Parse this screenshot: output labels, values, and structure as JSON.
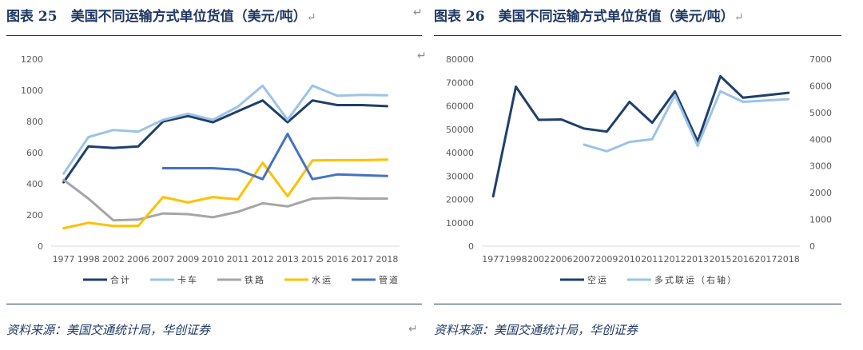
{
  "left_panel": {
    "title": "图表 25　美国不同运输方式单位货值（美元/吨）",
    "return_mark": "↵",
    "source": "资料来源：美国交通统计局，华创证券",
    "chart_data": {
      "type": "line",
      "categories": [
        "1977",
        "1998",
        "2002",
        "2006",
        "2007",
        "2009",
        "2010",
        "2011",
        "2012",
        "2013",
        "2015",
        "2016",
        "2017",
        "2018"
      ],
      "ylim": [
        0,
        1200
      ],
      "yticks": [
        0,
        200,
        400,
        600,
        800,
        1000,
        1200
      ],
      "grid": false,
      "legend_position": "bottom",
      "series": [
        {
          "name": "合计",
          "color": "#1f3f6b",
          "values": [
            410,
            640,
            630,
            640,
            800,
            835,
            795,
            865,
            935,
            795,
            935,
            905,
            905,
            898
          ]
        },
        {
          "name": "卡车",
          "color": "#9dc3e6",
          "values": [
            465,
            700,
            745,
            735,
            810,
            850,
            810,
            895,
            1030,
            810,
            1030,
            965,
            970,
            968
          ]
        },
        {
          "name": "铁路",
          "color": "#a6a6a6",
          "values": [
            425,
            305,
            165,
            170,
            210,
            205,
            185,
            220,
            275,
            255,
            305,
            310,
            305,
            305
          ]
        },
        {
          "name": "水运",
          "color": "#ffc000",
          "values": [
            115,
            150,
            130,
            130,
            315,
            280,
            315,
            300,
            535,
            320,
            550,
            552,
            552,
            555
          ]
        },
        {
          "name": "管道",
          "color": "#4472c4",
          "values": [
            null,
            null,
            null,
            null,
            500,
            500,
            500,
            490,
            430,
            720,
            430,
            460,
            455,
            450
          ]
        }
      ]
    }
  },
  "middle_mark": "↵",
  "right_panel": {
    "title": "图表 26　美国不同运输方式单位货值（美元/吨）",
    "return_mark": "↵",
    "source": "资料来源：美国交通统计局，华创证券",
    "chart_data": {
      "type": "line",
      "categories": [
        "1977",
        "1998",
        "2002",
        "2006",
        "2007",
        "2009",
        "2010",
        "2011",
        "2012",
        "2013",
        "2015",
        "2016",
        "2017",
        "2018"
      ],
      "ylim": [
        0,
        80000
      ],
      "yticks": [
        0,
        10000,
        20000,
        30000,
        40000,
        50000,
        60000,
        70000,
        80000
      ],
      "y2lim": [
        0,
        7000
      ],
      "y2ticks": [
        0,
        1000,
        2000,
        3000,
        4000,
        5000,
        6000,
        7000
      ],
      "grid": false,
      "legend_position": "bottom",
      "series": [
        {
          "name": "空运",
          "color": "#1f3f6b",
          "axis": "left",
          "values": [
            21300,
            68200,
            54000,
            54200,
            50300,
            49000,
            61700,
            52800,
            66200,
            44800,
            72700,
            63500,
            64500,
            65600
          ]
        },
        {
          "name": "多式联运（右轴）",
          "color": "#9dc3e6",
          "axis": "right",
          "values": [
            null,
            null,
            null,
            null,
            3800,
            3550,
            3900,
            4000,
            5650,
            3750,
            5800,
            5400,
            5450,
            5500
          ]
        }
      ]
    }
  }
}
